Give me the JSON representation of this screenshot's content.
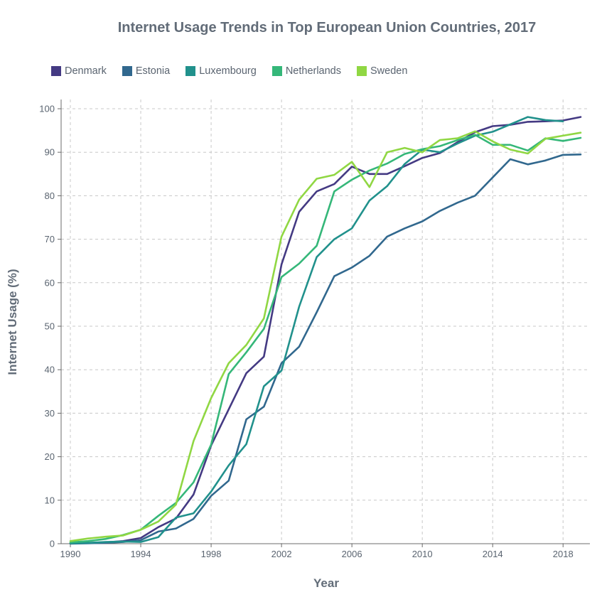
{
  "chart_data": {
    "type": "line",
    "title": "Internet Usage Trends in Top European Union Countries, 2017",
    "xlabel": "Year",
    "ylabel": "Internet Usage (%)",
    "xlim": [
      1990,
      2019
    ],
    "ylim": [
      0,
      100
    ],
    "xticks": [
      1990,
      1994,
      1998,
      2002,
      2006,
      2010,
      2014,
      2018
    ],
    "yticks": [
      0,
      10,
      20,
      30,
      40,
      50,
      60,
      70,
      80,
      90,
      100
    ],
    "grid": true,
    "legend_position": "top-left",
    "x": [
      1990,
      1991,
      1992,
      1993,
      1994,
      1995,
      1996,
      1997,
      1998,
      1999,
      2000,
      2001,
      2002,
      2003,
      2004,
      2005,
      2006,
      2007,
      2008,
      2009,
      2010,
      2011,
      2012,
      2013,
      2014,
      2015,
      2016,
      2017,
      2018,
      2019
    ],
    "series": [
      {
        "name": "Denmark",
        "color": "#443a83",
        "values": [
          0.1,
          0.2,
          0.3,
          0.6,
          1.3,
          3.8,
          5.8,
          11.3,
          22.6,
          30.9,
          39.2,
          43.0,
          64.2,
          76.3,
          81.0,
          82.7,
          86.7,
          85.0,
          85.0,
          86.8,
          88.7,
          89.8,
          92.3,
          94.6,
          96.0,
          96.3,
          97.0,
          97.1,
          97.3,
          98.1
        ]
      },
      {
        "name": "Estonia",
        "color": "#31688e",
        "values": [
          0.0,
          0.1,
          0.2,
          0.4,
          0.8,
          2.8,
          3.5,
          5.7,
          11.0,
          14.5,
          28.6,
          31.5,
          41.5,
          45.3,
          53.2,
          61.5,
          63.5,
          66.2,
          70.6,
          72.5,
          74.1,
          76.5,
          78.4,
          80.0,
          84.2,
          88.4,
          87.2,
          88.1,
          89.4,
          89.5
        ]
      },
      {
        "name": "Luxembourg",
        "color": "#21918c",
        "values": [
          0.1,
          0.2,
          0.4,
          0.5,
          0.4,
          1.5,
          6.0,
          7.0,
          12.0,
          18.0,
          22.9,
          36.2,
          39.8,
          54.5,
          65.9,
          70.0,
          72.5,
          78.9,
          82.2,
          87.3,
          90.6,
          90.0,
          92.0,
          93.8,
          94.7,
          96.4,
          98.1,
          97.4,
          97.1,
          null
        ]
      },
      {
        "name": "Netherlands",
        "color": "#35b779",
        "values": [
          0.3,
          0.6,
          1.1,
          2.0,
          3.2,
          6.4,
          9.4,
          14.1,
          22.8,
          39.0,
          44.0,
          49.4,
          61.3,
          64.4,
          68.5,
          81.0,
          83.7,
          85.8,
          87.4,
          89.6,
          90.7,
          91.4,
          92.8,
          94.0,
          91.7,
          91.7,
          90.4,
          93.2,
          92.6,
          93.3
        ]
      },
      {
        "name": "Sweden",
        "color": "#90d743",
        "values": [
          0.6,
          1.2,
          1.6,
          1.9,
          3.2,
          5.1,
          9.0,
          23.6,
          33.5,
          41.5,
          45.7,
          51.8,
          70.6,
          79.1,
          83.9,
          84.8,
          87.8,
          82.0,
          90.0,
          91.0,
          90.0,
          92.8,
          93.2,
          94.8,
          92.5,
          90.6,
          89.7,
          93.1,
          93.8,
          94.5
        ]
      }
    ]
  },
  "colors": {
    "grid": "#c8c8c8",
    "axis": "#6b6b6b",
    "text": "#5a6470"
  }
}
